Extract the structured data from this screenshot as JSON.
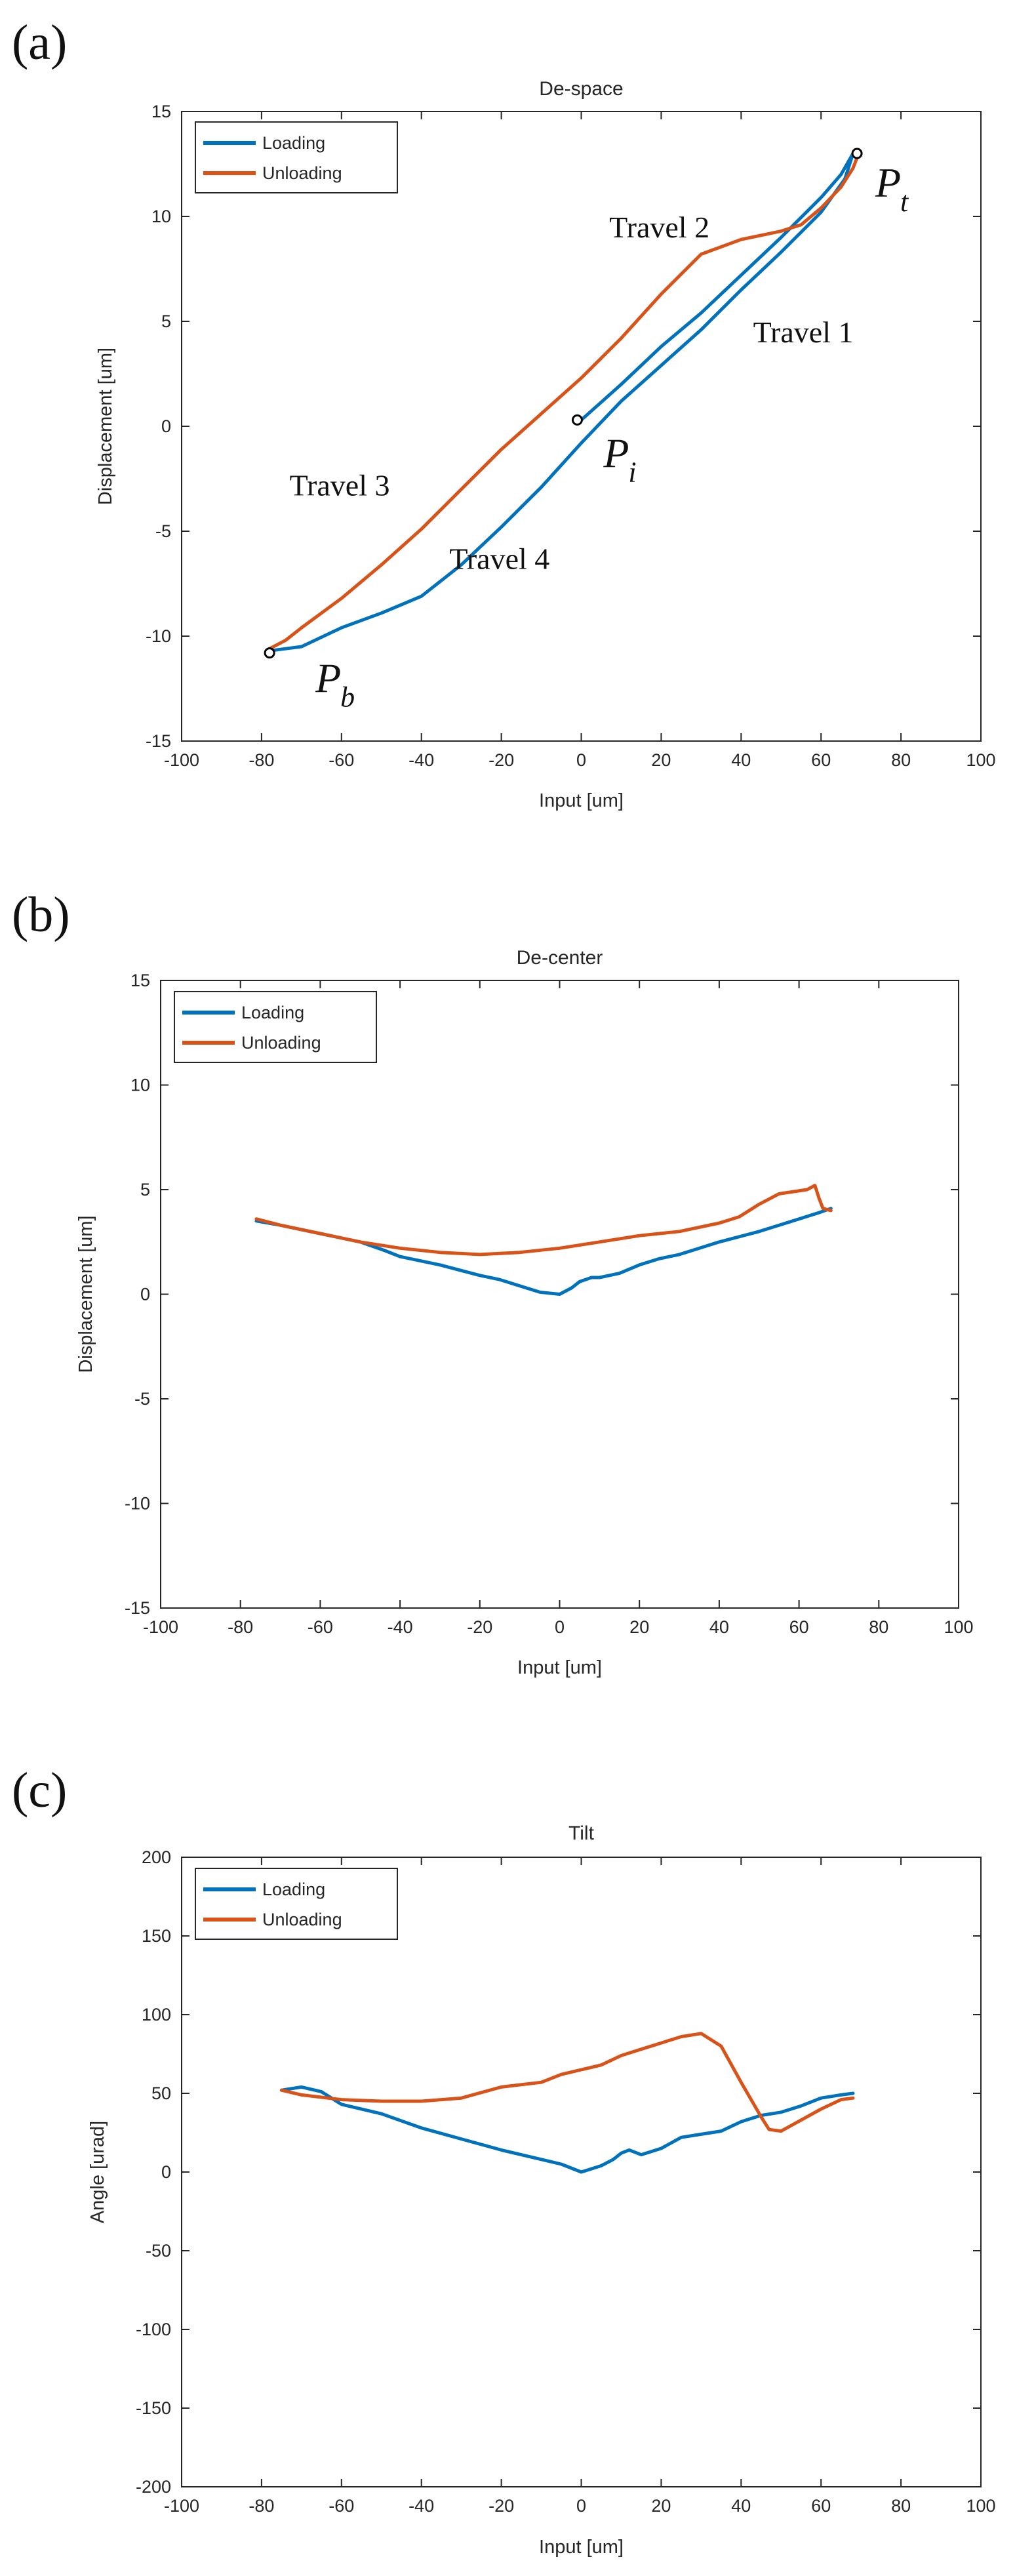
{
  "colors": {
    "loading": "#0072BD",
    "unloading": "#D95319",
    "axis": "#262626"
  },
  "chart_data": [
    {
      "type": "line",
      "panel_label": "(a)",
      "title": "De-space",
      "xlabel": "Input [um]",
      "ylabel": "Displacement [um]",
      "xlim": [
        -100,
        100
      ],
      "ylim": [
        -15,
        15
      ],
      "xticks": [
        -100,
        -80,
        -60,
        -40,
        -20,
        0,
        20,
        40,
        60,
        80,
        100
      ],
      "yticks": [
        -15,
        -10,
        -5,
        0,
        5,
        10,
        15
      ],
      "xticklabels": [
        "-100",
        "-80",
        "-60",
        "-40",
        "-20",
        "0",
        "20",
        "40",
        "60",
        "80",
        "100"
      ],
      "yticklabels": [
        "-15",
        "-10",
        "-5",
        "0",
        "5",
        "10",
        "15"
      ],
      "legend": {
        "placement": "top-left",
        "entries": [
          "Loading",
          "Unloading"
        ]
      },
      "series": [
        {
          "name": "Loading",
          "x": [
            0,
            10,
            20,
            30,
            40,
            50,
            60,
            65,
            68,
            66,
            60,
            50,
            40,
            30,
            20,
            10,
            0,
            -10,
            -20,
            -30,
            -40,
            -50,
            -60,
            -70,
            -74,
            -78
          ],
          "y": [
            0.3,
            2.0,
            3.8,
            5.4,
            7.2,
            9.0,
            10.9,
            12.0,
            13.0,
            11.8,
            10.2,
            8.3,
            6.5,
            4.6,
            2.9,
            1.2,
            -0.8,
            -2.9,
            -4.8,
            -6.6,
            -8.1,
            -8.9,
            -9.6,
            -10.5,
            -10.6,
            -10.7
          ]
        },
        {
          "name": "Unloading",
          "x": [
            -78,
            -74,
            -70,
            -60,
            -50,
            -40,
            -30,
            -20,
            -10,
            0,
            10,
            20,
            30,
            40,
            50,
            55,
            60,
            65,
            68,
            69
          ],
          "y": [
            -10.6,
            -10.2,
            -9.6,
            -8.2,
            -6.6,
            -4.9,
            -3.0,
            -1.1,
            0.6,
            2.3,
            4.2,
            6.3,
            8.2,
            8.9,
            9.3,
            9.6,
            10.4,
            11.4,
            12.3,
            12.8
          ]
        }
      ],
      "markers": [
        {
          "label": "P",
          "sub": "t",
          "x": 69,
          "y": 13.0
        },
        {
          "label": "P",
          "sub": "i",
          "x": -1,
          "y": 0.3
        },
        {
          "label": "P",
          "sub": "b",
          "x": -78,
          "y": -10.8
        }
      ],
      "annotations": [
        {
          "text": "Travel 1",
          "x": 43,
          "y": 4.0
        },
        {
          "text": "Travel 2",
          "x": 7,
          "y": 9.0
        },
        {
          "text": "Travel 3",
          "x": -73,
          "y": -3.3
        },
        {
          "text": "Travel 4",
          "x": -33,
          "y": -6.8
        }
      ]
    },
    {
      "type": "line",
      "panel_label": "(b)",
      "title": "De-center",
      "xlabel": "Input [um]",
      "ylabel": "Displacement [um]",
      "xlim": [
        -100,
        100
      ],
      "ylim": [
        -15,
        15
      ],
      "xticks": [
        -100,
        -80,
        -60,
        -40,
        -20,
        0,
        20,
        40,
        60,
        80,
        100
      ],
      "yticks": [
        -15,
        -10,
        -5,
        0,
        5,
        10,
        15
      ],
      "xticklabels": [
        "-100",
        "-80",
        "-60",
        "-40",
        "-20",
        "0",
        "20",
        "40",
        "60",
        "80",
        "100"
      ],
      "yticklabels": [
        "-15",
        "-10",
        "-5",
        "0",
        "5",
        "10",
        "15"
      ],
      "legend": {
        "placement": "top-left",
        "entries": [
          "Loading",
          "Unloading"
        ]
      },
      "series": [
        {
          "name": "Loading",
          "x": [
            -76,
            -70,
            -60,
            -50,
            -44,
            -40,
            -30,
            -20,
            -15,
            -10,
            -5,
            0,
            3,
            5,
            8,
            10,
            15,
            20,
            25,
            30,
            40,
            50,
            60,
            65,
            68
          ],
          "y": [
            3.5,
            3.3,
            2.9,
            2.5,
            2.1,
            1.8,
            1.4,
            0.9,
            0.7,
            0.4,
            0.1,
            0.0,
            0.3,
            0.6,
            0.8,
            0.8,
            1.0,
            1.4,
            1.7,
            1.9,
            2.5,
            3.0,
            3.6,
            3.9,
            4.1
          ]
        },
        {
          "name": "Unloading",
          "x": [
            68,
            66,
            65,
            64,
            62,
            55,
            50,
            45,
            40,
            30,
            20,
            10,
            0,
            -10,
            -20,
            -30,
            -40,
            -50,
            -60,
            -70,
            -76
          ],
          "y": [
            4.0,
            4.1,
            4.6,
            5.2,
            5.0,
            4.8,
            4.3,
            3.7,
            3.4,
            3.0,
            2.8,
            2.5,
            2.2,
            2.0,
            1.9,
            2.0,
            2.2,
            2.5,
            2.9,
            3.3,
            3.6
          ]
        }
      ]
    },
    {
      "type": "line",
      "panel_label": "(c)",
      "title": "Tilt",
      "xlabel": "Input [um]",
      "ylabel": "Angle [urad]",
      "xlim": [
        -100,
        100
      ],
      "ylim": [
        -200,
        200
      ],
      "xticks": [
        -100,
        -80,
        -60,
        -40,
        -20,
        0,
        20,
        40,
        60,
        80,
        100
      ],
      "yticks": [
        -200,
        -150,
        -100,
        -50,
        0,
        50,
        100,
        150,
        200
      ],
      "xticklabels": [
        "-100",
        "-80",
        "-60",
        "-40",
        "-20",
        "0",
        "20",
        "40",
        "60",
        "80",
        "100"
      ],
      "yticklabels": [
        "-200",
        "-150",
        "-100",
        "-50",
        "0",
        "50",
        "100",
        "150",
        "200"
      ],
      "legend": {
        "placement": "top-left",
        "entries": [
          "Loading",
          "Unloading"
        ]
      },
      "series": [
        {
          "name": "Loading",
          "x": [
            -75,
            -70,
            -65,
            -60,
            -50,
            -40,
            -30,
            -20,
            -10,
            -5,
            0,
            5,
            8,
            10,
            12,
            15,
            20,
            25,
            30,
            35,
            40,
            45,
            50,
            55,
            60,
            65,
            68
          ],
          "y": [
            52,
            54,
            51,
            43,
            37,
            28,
            21,
            14,
            8,
            5,
            0,
            4,
            8,
            12,
            14,
            11,
            15,
            22,
            24,
            26,
            32,
            36,
            38,
            42,
            47,
            49,
            50
          ]
        },
        {
          "name": "Unloading",
          "x": [
            68,
            65,
            60,
            55,
            50,
            47,
            45,
            40,
            35,
            30,
            25,
            20,
            15,
            10,
            5,
            0,
            -5,
            -10,
            -20,
            -30,
            -40,
            -50,
            -60,
            -70,
            -75
          ],
          "y": [
            47,
            46,
            40,
            33,
            26,
            27,
            35,
            57,
            80,
            88,
            86,
            82,
            78,
            74,
            68,
            65,
            62,
            57,
            54,
            47,
            45,
            45,
            46,
            49,
            52
          ]
        }
      ]
    }
  ]
}
